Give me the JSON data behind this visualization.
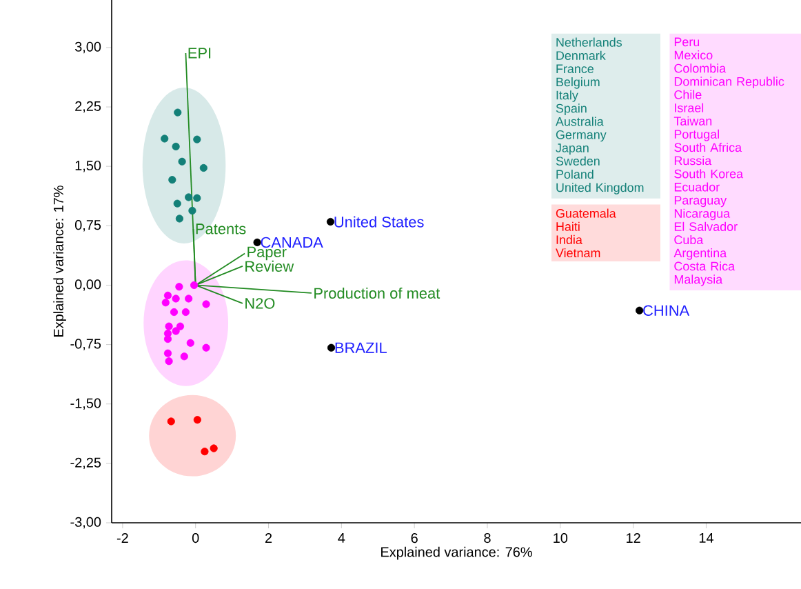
{
  "chart_data": {
    "type": "scatter",
    "xlabel": "Explained variance: 76%",
    "ylabel": "Explained variance: 17%",
    "xlim": [
      -2.3,
      16.6
    ],
    "ylim": [
      -3.0,
      3.6
    ],
    "xticks": [
      -2,
      0,
      2,
      4,
      6,
      8,
      10,
      12,
      14
    ],
    "yticks": [
      {
        "value": -3,
        "label": "-3,00"
      },
      {
        "value": -2.25,
        "label": "-2,25"
      },
      {
        "value": -1.5,
        "label": "-1,50"
      },
      {
        "value": -0.75,
        "label": "-0,75"
      },
      {
        "value": 0,
        "label": "0,00"
      },
      {
        "value": 0.75,
        "label": "0,75"
      },
      {
        "value": 1.5,
        "label": "1,50"
      },
      {
        "value": 2.25,
        "label": "2,25"
      },
      {
        "value": 3,
        "label": "3,00"
      }
    ],
    "series": [
      {
        "type": "scatter",
        "marker": "circle",
        "color": "#138078",
        "x": [
          -0.49,
          -0.85,
          -0.54,
          0.04,
          -0.37,
          0.22,
          -0.64,
          -0.19,
          0.04,
          -0.5,
          -0.09,
          -0.44
        ],
        "values": [
          2.18,
          1.85,
          1.75,
          1.84,
          1.56,
          1.48,
          1.33,
          1.11,
          1.1,
          1.03,
          0.94,
          0.84
        ]
      },
      {
        "type": "scatter",
        "marker": "circle",
        "color": "#ff00ff",
        "x": [
          -0.45,
          -0.04,
          -0.76,
          -0.54,
          -0.19,
          -0.82,
          0.29,
          -0.59,
          -0.27,
          -0.73,
          -0.42,
          -0.76,
          -0.54,
          -0.76,
          -0.14,
          0.29,
          -0.76,
          -0.31,
          -0.73
        ],
        "values": [
          -0.02,
          0.0,
          -0.13,
          -0.17,
          -0.17,
          -0.22,
          -0.24,
          -0.34,
          -0.34,
          -0.52,
          -0.52,
          -0.61,
          -0.58,
          -0.68,
          -0.73,
          -0.79,
          -0.86,
          -0.9,
          -0.96
        ]
      },
      {
        "type": "scatter",
        "marker": "circle",
        "color": "#ff0000",
        "x": [
          -0.67,
          0.05,
          0.25,
          0.5
        ],
        "values": [
          -1.72,
          -1.7,
          -2.1,
          -2.06
        ]
      },
      {
        "type": "scatter",
        "marker": "circle",
        "color": "#000000",
        "x": [
          3.7,
          1.69,
          3.72,
          12.17
        ],
        "values": [
          0.8,
          0.54,
          -0.79,
          -0.32
        ]
      },
      {
        "type": "line",
        "marker": "none",
        "name": "EPI",
        "color": "#228b22",
        "x": [
          0,
          -0.27
        ],
        "values": [
          0,
          2.93
        ]
      },
      {
        "type": "line",
        "marker": "none",
        "name": "Patents",
        "color": "#228b22",
        "x": [
          0,
          -0.06
        ],
        "values": [
          0,
          0.71
        ]
      },
      {
        "type": "line",
        "marker": "none",
        "name": "Paper",
        "color": "#228b22",
        "x": [
          0,
          1.35
        ],
        "values": [
          0,
          0.4
        ]
      },
      {
        "type": "line",
        "marker": "none",
        "name": "Review",
        "color": "#228b22",
        "x": [
          0,
          1.29
        ],
        "values": [
          0,
          0.24
        ]
      },
      {
        "type": "line",
        "marker": "none",
        "name": "Production of meat",
        "color": "#228b22",
        "x": [
          0,
          3.18
        ],
        "values": [
          0,
          -0.1
        ]
      },
      {
        "type": "line",
        "marker": "none",
        "name": "N2O",
        "color": "#228b22",
        "x": [
          0,
          1.29
        ],
        "values": [
          0,
          -0.23
        ]
      }
    ],
    "annotations": [
      "Netherlands",
      "Denmark",
      "France",
      "Belgium",
      "Italy",
      "Spain",
      "Australia",
      "Germany",
      "Japan",
      "Sweden",
      "Poland",
      "United Kingdom",
      "Peru",
      "Mexico",
      "Colombia",
      "Dominican Republic",
      "Chile",
      "Israel",
      "Taiwan",
      "Portugal",
      "South Africa",
      "Russia",
      "South Korea",
      "Ecuador",
      "Paraguay",
      "Nicaragua",
      "El Salvador",
      "Cuba",
      "Argentina",
      "Costa Rica",
      "Malaysia",
      "Guatemala",
      "Haiti",
      "India",
      "Vietnam",
      {
        "text": "United States",
        "x": 3.7,
        "y": 0.8
      },
      {
        "text": "CANADA",
        "x": 1.69,
        "y": 0.54
      },
      {
        "text": "BRAZIL",
        "x": 3.72,
        "y": -0.79
      },
      {
        "text": "CHINA",
        "x": 12.17,
        "y": -0.32
      }
    ]
  }
}
